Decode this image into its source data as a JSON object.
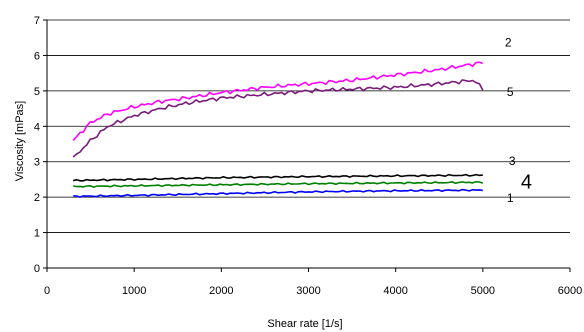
{
  "chart_data": {
    "type": "line",
    "title": "",
    "xlabel": "Shear rate [1/s]",
    "ylabel": "Viscosity [mPas]",
    "xlim": [
      0,
      6000
    ],
    "ylim": [
      0,
      7
    ],
    "x_ticks": [
      "0",
      "1000",
      "2000",
      "3000",
      "4000",
      "5000",
      "6000"
    ],
    "y_ticks": [
      "0",
      "1",
      "2",
      "3",
      "4",
      "5",
      "6",
      "7"
    ],
    "grid": "horizontal",
    "legend": "none",
    "series": [
      {
        "label": "2",
        "color": "#ff00ff",
        "x": [
          300,
          500,
          700,
          1000,
          1300,
          1600,
          2000,
          2500,
          3000,
          3500,
          4000,
          4500,
          5000
        ],
        "y": [
          3.6,
          4.1,
          4.35,
          4.55,
          4.7,
          4.8,
          4.95,
          5.1,
          5.2,
          5.3,
          5.45,
          5.6,
          5.8
        ]
      },
      {
        "label": "5",
        "color": "#7a1a7a",
        "x": [
          300,
          500,
          700,
          1000,
          1300,
          1600,
          2000,
          2500,
          3000,
          3500,
          4000,
          4500,
          4900,
          5000
        ],
        "y": [
          3.1,
          3.6,
          4.0,
          4.3,
          4.5,
          4.65,
          4.8,
          4.9,
          5.0,
          5.05,
          5.1,
          5.2,
          5.3,
          5.05
        ]
      },
      {
        "label": "3",
        "color": "#000000",
        "x": [
          300,
          1000,
          2000,
          3000,
          4000,
          5000
        ],
        "y": [
          2.47,
          2.5,
          2.55,
          2.58,
          2.6,
          2.62
        ]
      },
      {
        "label": "4",
        "color": "#008000",
        "x": [
          300,
          1000,
          2000,
          3000,
          4000,
          5000
        ],
        "y": [
          2.3,
          2.32,
          2.35,
          2.38,
          2.4,
          2.42
        ]
      },
      {
        "label": "1",
        "color": "#0000ff",
        "x": [
          300,
          1000,
          2000,
          3000,
          4000,
          5000
        ],
        "y": [
          2.02,
          2.05,
          2.1,
          2.15,
          2.18,
          2.2
        ]
      }
    ]
  }
}
